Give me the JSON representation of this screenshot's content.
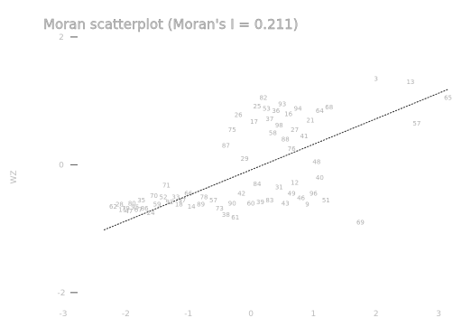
{
  "chart_data": {
    "type": "scatter",
    "title": "Moran scatterplot (Moran's I = 0.211)",
    "xlabel": "",
    "ylabel": "WZ",
    "xlim": [
      -3,
      3.2
    ],
    "ylim": [
      -2.2,
      1.9
    ],
    "x_ticks": [
      -3,
      -2,
      -1,
      0,
      1,
      2,
      3
    ],
    "y_ticks": [
      -2,
      0,
      2
    ],
    "fit_line": {
      "intercept": -0.08,
      "slope": 0.4
    },
    "points": [
      {
        "x": -2.2,
        "y": -0.65,
        "label": "62"
      },
      {
        "x": -2.1,
        "y": -0.62,
        "label": "28"
      },
      {
        "x": -2.05,
        "y": -0.7,
        "label": "11"
      },
      {
        "x": -2.0,
        "y": -0.68,
        "label": "79"
      },
      {
        "x": -1.95,
        "y": -0.72,
        "label": "47"
      },
      {
        "x": -1.9,
        "y": -0.6,
        "label": "80"
      },
      {
        "x": -1.85,
        "y": -0.66,
        "label": "95"
      },
      {
        "x": -1.8,
        "y": -0.7,
        "label": "67"
      },
      {
        "x": -1.75,
        "y": -0.55,
        "label": "35"
      },
      {
        "x": -1.7,
        "y": -0.68,
        "label": "86"
      },
      {
        "x": -1.6,
        "y": -0.75,
        "label": "24"
      },
      {
        "x": -1.55,
        "y": -0.48,
        "label": "70"
      },
      {
        "x": -1.5,
        "y": -0.62,
        "label": "59"
      },
      {
        "x": -1.4,
        "y": -0.5,
        "label": "52"
      },
      {
        "x": -1.35,
        "y": -0.32,
        "label": "71"
      },
      {
        "x": -1.3,
        "y": -0.58,
        "label": "92"
      },
      {
        "x": -1.2,
        "y": -0.5,
        "label": "33"
      },
      {
        "x": -1.15,
        "y": -0.62,
        "label": "18"
      },
      {
        "x": -1.1,
        "y": -0.55,
        "label": "97"
      },
      {
        "x": -1.0,
        "y": -0.45,
        "label": "66"
      },
      {
        "x": -0.95,
        "y": -0.65,
        "label": "14"
      },
      {
        "x": -0.8,
        "y": -0.62,
        "label": "89"
      },
      {
        "x": -0.75,
        "y": -0.5,
        "label": "78"
      },
      {
        "x": -0.6,
        "y": -0.55,
        "label": "57"
      },
      {
        "x": -0.5,
        "y": -0.68,
        "label": "73"
      },
      {
        "x": -0.4,
        "y": -0.78,
        "label": "38"
      },
      {
        "x": -0.3,
        "y": -0.6,
        "label": "90"
      },
      {
        "x": -0.25,
        "y": -0.82,
        "label": "61"
      },
      {
        "x": -0.15,
        "y": -0.45,
        "label": "42"
      },
      {
        "x": 0.0,
        "y": -0.6,
        "label": "60"
      },
      {
        "x": 0.1,
        "y": -0.3,
        "label": "84"
      },
      {
        "x": 0.15,
        "y": -0.58,
        "label": "39"
      },
      {
        "x": 0.3,
        "y": -0.55,
        "label": "83"
      },
      {
        "x": 0.45,
        "y": -0.35,
        "label": "31"
      },
      {
        "x": 0.55,
        "y": -0.6,
        "label": "43"
      },
      {
        "x": 0.65,
        "y": -0.45,
        "label": "49"
      },
      {
        "x": 0.7,
        "y": -0.28,
        "label": "12"
      },
      {
        "x": 0.8,
        "y": -0.52,
        "label": "46"
      },
      {
        "x": 0.9,
        "y": -0.62,
        "label": "9"
      },
      {
        "x": 1.0,
        "y": -0.45,
        "label": "96"
      },
      {
        "x": 1.1,
        "y": -0.2,
        "label": "40"
      },
      {
        "x": 1.2,
        "y": -0.55,
        "label": "51"
      },
      {
        "x": 1.75,
        "y": -0.9,
        "label": "69"
      },
      {
        "x": -0.4,
        "y": 0.3,
        "label": "87"
      },
      {
        "x": -0.3,
        "y": 0.55,
        "label": "75"
      },
      {
        "x": -0.2,
        "y": 0.78,
        "label": "26"
      },
      {
        "x": -0.1,
        "y": 0.1,
        "label": "29"
      },
      {
        "x": 0.05,
        "y": 0.68,
        "label": "17"
      },
      {
        "x": 0.1,
        "y": 0.92,
        "label": "25"
      },
      {
        "x": 0.2,
        "y": 1.05,
        "label": "82"
      },
      {
        "x": 0.25,
        "y": 0.88,
        "label": "53"
      },
      {
        "x": 0.3,
        "y": 0.72,
        "label": "37"
      },
      {
        "x": 0.35,
        "y": 0.5,
        "label": "58"
      },
      {
        "x": 0.4,
        "y": 0.85,
        "label": "36"
      },
      {
        "x": 0.45,
        "y": 0.62,
        "label": "98"
      },
      {
        "x": 0.5,
        "y": 0.95,
        "label": "93"
      },
      {
        "x": 0.55,
        "y": 0.4,
        "label": "88"
      },
      {
        "x": 0.6,
        "y": 0.8,
        "label": "16"
      },
      {
        "x": 0.65,
        "y": 0.25,
        "label": "76"
      },
      {
        "x": 0.7,
        "y": 0.55,
        "label": "27"
      },
      {
        "x": 0.75,
        "y": 0.88,
        "label": "94"
      },
      {
        "x": 0.85,
        "y": 0.45,
        "label": "41"
      },
      {
        "x": 0.95,
        "y": 0.7,
        "label": "21"
      },
      {
        "x": 1.1,
        "y": 0.85,
        "label": "64"
      },
      {
        "x": 1.25,
        "y": 0.9,
        "label": "68"
      },
      {
        "x": 1.05,
        "y": 0.05,
        "label": "48"
      },
      {
        "x": 2.0,
        "y": 1.35,
        "label": "3"
      },
      {
        "x": 2.55,
        "y": 1.3,
        "label": "13"
      },
      {
        "x": 2.65,
        "y": 0.65,
        "label": "57"
      },
      {
        "x": 3.15,
        "y": 1.05,
        "label": "65"
      }
    ]
  }
}
